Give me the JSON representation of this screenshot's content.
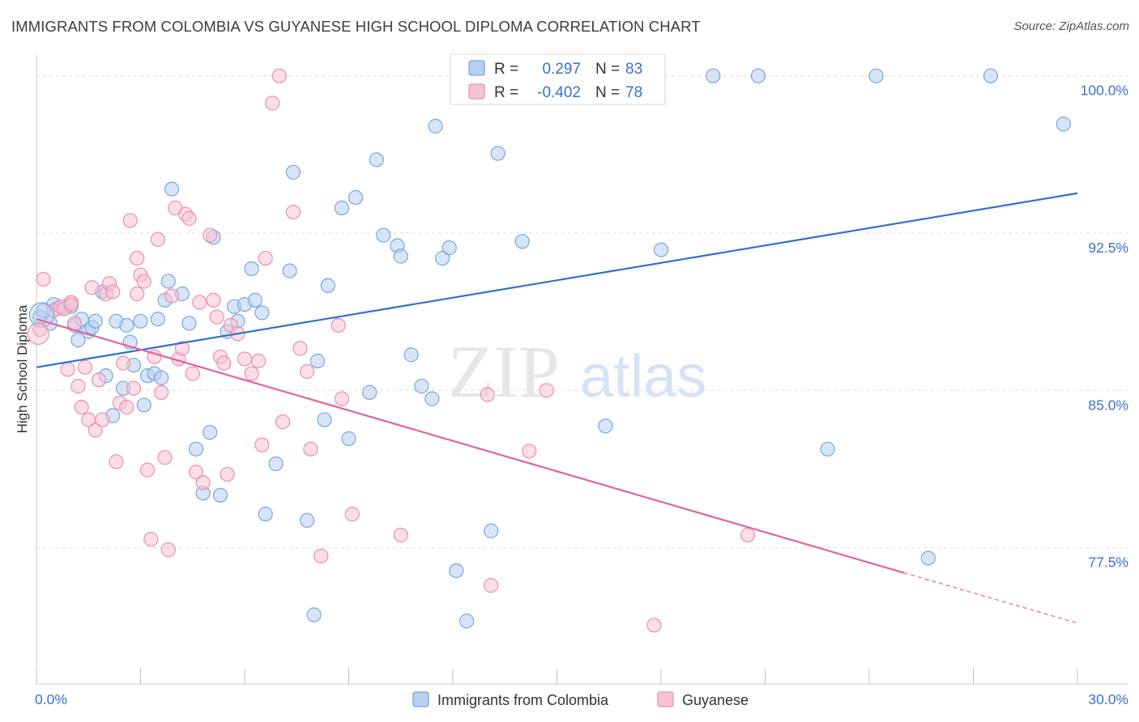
{
  "title": "IMMIGRANTS FROM COLOMBIA VS GUYANESE HIGH SCHOOL DIPLOMA CORRELATION CHART",
  "source": "Source: ZipAtlas.com",
  "watermark": {
    "zip": "ZIP",
    "atlas": "atlas"
  },
  "colors": {
    "blue_fill": "#b8d0f0",
    "blue_stroke": "#7aa6dc",
    "blue_line": "#2f6fcc",
    "pink_fill": "#f7c3d3",
    "pink_stroke": "#e98fae",
    "pink_line": "#e0649a",
    "value_text": "#3a73c8",
    "grid": "#dedede"
  },
  "stats": [
    {
      "r_label": "R =",
      "r_value": "0.297",
      "n_label": "N =",
      "n_value": "83"
    },
    {
      "r_label": "R =",
      "r_value": "-0.402",
      "n_label": "N =",
      "n_value": "78"
    }
  ],
  "chart_data": {
    "type": "scatter",
    "title": "IMMIGRANTS FROM COLOMBIA VS GUYANESE HIGH SCHOOL DIPLOMA CORRELATION CHART",
    "xlabel": "",
    "ylabel": "High School Diploma",
    "xlim": [
      0,
      30
    ],
    "ylim": [
      71,
      101.3
    ],
    "x_tick_labels": [
      {
        "value": 0,
        "label": "0.0%"
      },
      {
        "value": 30,
        "label": "30.0%"
      }
    ],
    "y_tick_labels": [
      {
        "value": 100,
        "label": "100.0%"
      },
      {
        "value": 92.5,
        "label": "92.5%"
      },
      {
        "value": 85,
        "label": "85.0%"
      },
      {
        "value": 77.5,
        "label": "77.5%"
      }
    ],
    "grid": "horizontal dashed",
    "legend": "bottom-center",
    "series": [
      {
        "name": "Immigrants from Colombia",
        "color": "#b8d0f0",
        "trend": {
          "x": [
            0,
            30
          ],
          "y": [
            86.1,
            94.4
          ]
        },
        "points": [
          [
            0.1,
            88.5
          ],
          [
            0.4,
            88.2
          ],
          [
            0.5,
            89.1
          ],
          [
            0.8,
            88.9
          ],
          [
            1.0,
            89.0
          ],
          [
            1.1,
            88.1
          ],
          [
            1.3,
            88.4
          ],
          [
            1.5,
            87.8
          ],
          [
            1.6,
            88.0
          ],
          [
            1.7,
            88.3
          ],
          [
            1.9,
            89.7
          ],
          [
            2.0,
            85.7
          ],
          [
            2.2,
            83.8
          ],
          [
            2.3,
            88.3
          ],
          [
            2.5,
            85.1
          ],
          [
            2.6,
            88.1
          ],
          [
            2.7,
            87.3
          ],
          [
            2.8,
            86.2
          ],
          [
            3.0,
            88.3
          ],
          [
            3.1,
            84.3
          ],
          [
            3.2,
            85.7
          ],
          [
            3.4,
            85.8
          ],
          [
            3.5,
            88.4
          ],
          [
            3.6,
            85.6
          ],
          [
            3.7,
            89.3
          ],
          [
            3.8,
            90.2
          ],
          [
            3.9,
            94.6
          ],
          [
            4.2,
            89.6
          ],
          [
            4.4,
            88.2
          ],
          [
            4.6,
            82.2
          ],
          [
            4.8,
            80.1
          ],
          [
            5.0,
            83.0
          ],
          [
            5.1,
            92.3
          ],
          [
            5.3,
            80.0
          ],
          [
            5.5,
            87.8
          ],
          [
            5.7,
            89.0
          ],
          [
            5.8,
            88.3
          ],
          [
            6.0,
            89.1
          ],
          [
            6.2,
            90.8
          ],
          [
            6.5,
            88.7
          ],
          [
            6.6,
            79.1
          ],
          [
            6.9,
            81.5
          ],
          [
            7.3,
            90.7
          ],
          [
            7.4,
            95.4
          ],
          [
            7.8,
            78.8
          ],
          [
            8.0,
            74.3
          ],
          [
            8.1,
            86.4
          ],
          [
            8.3,
            83.6
          ],
          [
            8.4,
            90.0
          ],
          [
            8.8,
            93.7
          ],
          [
            9.0,
            82.7
          ],
          [
            9.2,
            94.2
          ],
          [
            9.6,
            84.9
          ],
          [
            9.8,
            96.0
          ],
          [
            10.0,
            92.4
          ],
          [
            10.4,
            91.9
          ],
          [
            10.5,
            91.4
          ],
          [
            10.8,
            86.7
          ],
          [
            11.1,
            85.2
          ],
          [
            11.4,
            84.6
          ],
          [
            11.5,
            97.6
          ],
          [
            11.7,
            91.3
          ],
          [
            11.9,
            91.8
          ],
          [
            12.1,
            76.4
          ],
          [
            12.4,
            74.0
          ],
          [
            13.1,
            78.3
          ],
          [
            13.3,
            96.3
          ],
          [
            14.0,
            92.1
          ],
          [
            14.8,
            100.0
          ],
          [
            15.2,
            100.0
          ],
          [
            16.4,
            83.3
          ],
          [
            18.0,
            91.7
          ],
          [
            19.5,
            100.0
          ],
          [
            20.8,
            100.0
          ],
          [
            22.8,
            82.2
          ],
          [
            24.2,
            100.0
          ],
          [
            25.7,
            77.0
          ],
          [
            27.5,
            100.0
          ],
          [
            29.6,
            97.7
          ],
          [
            0.2,
            88.8
          ],
          [
            0.6,
            88.9
          ],
          [
            1.2,
            87.4
          ],
          [
            6.3,
            89.3
          ]
        ]
      },
      {
        "name": "Guyanese",
        "color": "#f7c3d3",
        "trend": {
          "x": [
            0,
            25.0
          ],
          "y": [
            88.4,
            76.3
          ]
        },
        "trend_extension": {
          "x": [
            25.0,
            30
          ],
          "y": [
            76.3,
            73.9
          ]
        },
        "points": [
          [
            0.1,
            87.9
          ],
          [
            0.2,
            90.3
          ],
          [
            0.5,
            88.8
          ],
          [
            0.7,
            89.0
          ],
          [
            0.8,
            88.9
          ],
          [
            0.9,
            86.0
          ],
          [
            1.0,
            89.2
          ],
          [
            1.1,
            88.2
          ],
          [
            1.2,
            85.2
          ],
          [
            1.3,
            84.2
          ],
          [
            1.4,
            86.1
          ],
          [
            1.5,
            83.6
          ],
          [
            1.6,
            89.9
          ],
          [
            1.7,
            83.1
          ],
          [
            1.8,
            85.5
          ],
          [
            1.9,
            83.6
          ],
          [
            2.0,
            89.6
          ],
          [
            2.1,
            90.1
          ],
          [
            2.2,
            89.7
          ],
          [
            2.3,
            81.6
          ],
          [
            2.4,
            84.4
          ],
          [
            2.5,
            86.3
          ],
          [
            2.6,
            84.2
          ],
          [
            2.7,
            93.1
          ],
          [
            2.8,
            85.1
          ],
          [
            2.9,
            91.3
          ],
          [
            3.0,
            90.5
          ],
          [
            3.1,
            90.2
          ],
          [
            3.2,
            81.2
          ],
          [
            3.3,
            77.9
          ],
          [
            3.4,
            86.6
          ],
          [
            3.5,
            92.2
          ],
          [
            3.6,
            84.9
          ],
          [
            3.7,
            81.8
          ],
          [
            3.8,
            77.4
          ],
          [
            3.9,
            89.5
          ],
          [
            4.0,
            93.7
          ],
          [
            4.1,
            86.5
          ],
          [
            4.2,
            87.0
          ],
          [
            4.3,
            93.4
          ],
          [
            4.4,
            93.2
          ],
          [
            4.5,
            85.8
          ],
          [
            4.6,
            81.1
          ],
          [
            4.8,
            80.6
          ],
          [
            5.0,
            92.4
          ],
          [
            5.1,
            89.3
          ],
          [
            5.2,
            88.5
          ],
          [
            5.3,
            86.6
          ],
          [
            5.4,
            86.3
          ],
          [
            5.5,
            81.0
          ],
          [
            5.6,
            88.1
          ],
          [
            5.8,
            87.7
          ],
          [
            6.0,
            86.5
          ],
          [
            6.2,
            85.8
          ],
          [
            6.4,
            86.4
          ],
          [
            6.5,
            82.4
          ],
          [
            6.6,
            91.3
          ],
          [
            6.8,
            98.7
          ],
          [
            7.0,
            100.0
          ],
          [
            7.1,
            83.5
          ],
          [
            7.4,
            93.5
          ],
          [
            7.6,
            87.0
          ],
          [
            7.8,
            85.9
          ],
          [
            7.9,
            82.2
          ],
          [
            8.2,
            77.1
          ],
          [
            8.7,
            88.1
          ],
          [
            8.8,
            84.6
          ],
          [
            9.1,
            79.1
          ],
          [
            10.5,
            78.1
          ],
          [
            13.0,
            84.8
          ],
          [
            13.1,
            75.7
          ],
          [
            14.2,
            82.1
          ],
          [
            14.7,
            85.0
          ],
          [
            17.8,
            73.8
          ],
          [
            20.5,
            78.1
          ],
          [
            1.0,
            89.1
          ],
          [
            4.7,
            89.2
          ],
          [
            2.9,
            89.6
          ]
        ]
      }
    ]
  }
}
